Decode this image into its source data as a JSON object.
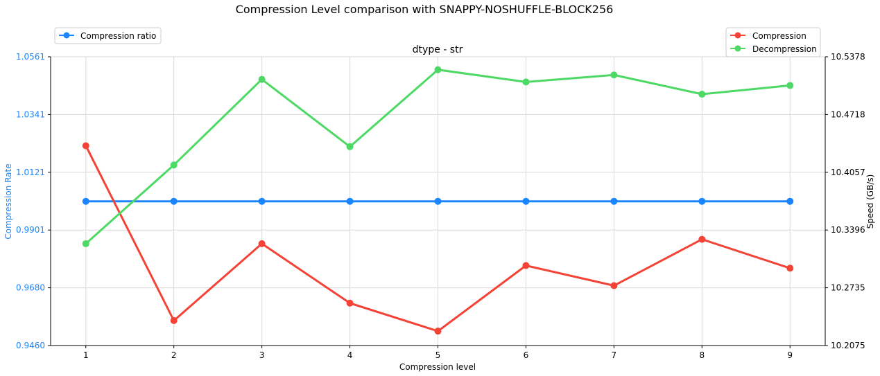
{
  "chart_data": {
    "type": "line",
    "suptitle": "Compression Level comparison with SNAPPY-NOSHUFFLE-BLOCK256",
    "title": "dtype - str",
    "xlabel": "Compression level",
    "ylabel_left": "Compression Rate",
    "ylabel_right": "Speed (GB/s)",
    "x": [
      1,
      2,
      3,
      4,
      5,
      6,
      7,
      8,
      9
    ],
    "ylim_left": [
      0.946,
      1.0561
    ],
    "ylim_right": [
      10.2075,
      10.5378
    ],
    "yticks_left": [
      "0.9460",
      "0.9680",
      "0.9901",
      "1.0121",
      "1.0341",
      "1.0561"
    ],
    "yticks_right": [
      "10.2075",
      "10.2735",
      "10.3396",
      "10.4057",
      "10.4718",
      "10.5378"
    ],
    "grid": true,
    "legend_left_placement": "top-left",
    "legend_right_placement": "top-right",
    "series": [
      {
        "name": "Compression ratio",
        "axis": "left",
        "color": "#1a85ff",
        "values": [
          1.001,
          1.001,
          1.001,
          1.001,
          1.001,
          1.001,
          1.001,
          1.001,
          1.001
        ]
      },
      {
        "name": "Compression",
        "axis": "right",
        "color": "#f44336",
        "values": [
          10.436,
          10.236,
          10.324,
          10.256,
          10.224,
          10.299,
          10.276,
          10.329,
          10.296
        ]
      },
      {
        "name": "Decompression",
        "axis": "right",
        "color": "#4cd964",
        "values": [
          10.324,
          10.414,
          10.512,
          10.435,
          10.523,
          10.509,
          10.517,
          10.495,
          10.505
        ]
      }
    ]
  }
}
